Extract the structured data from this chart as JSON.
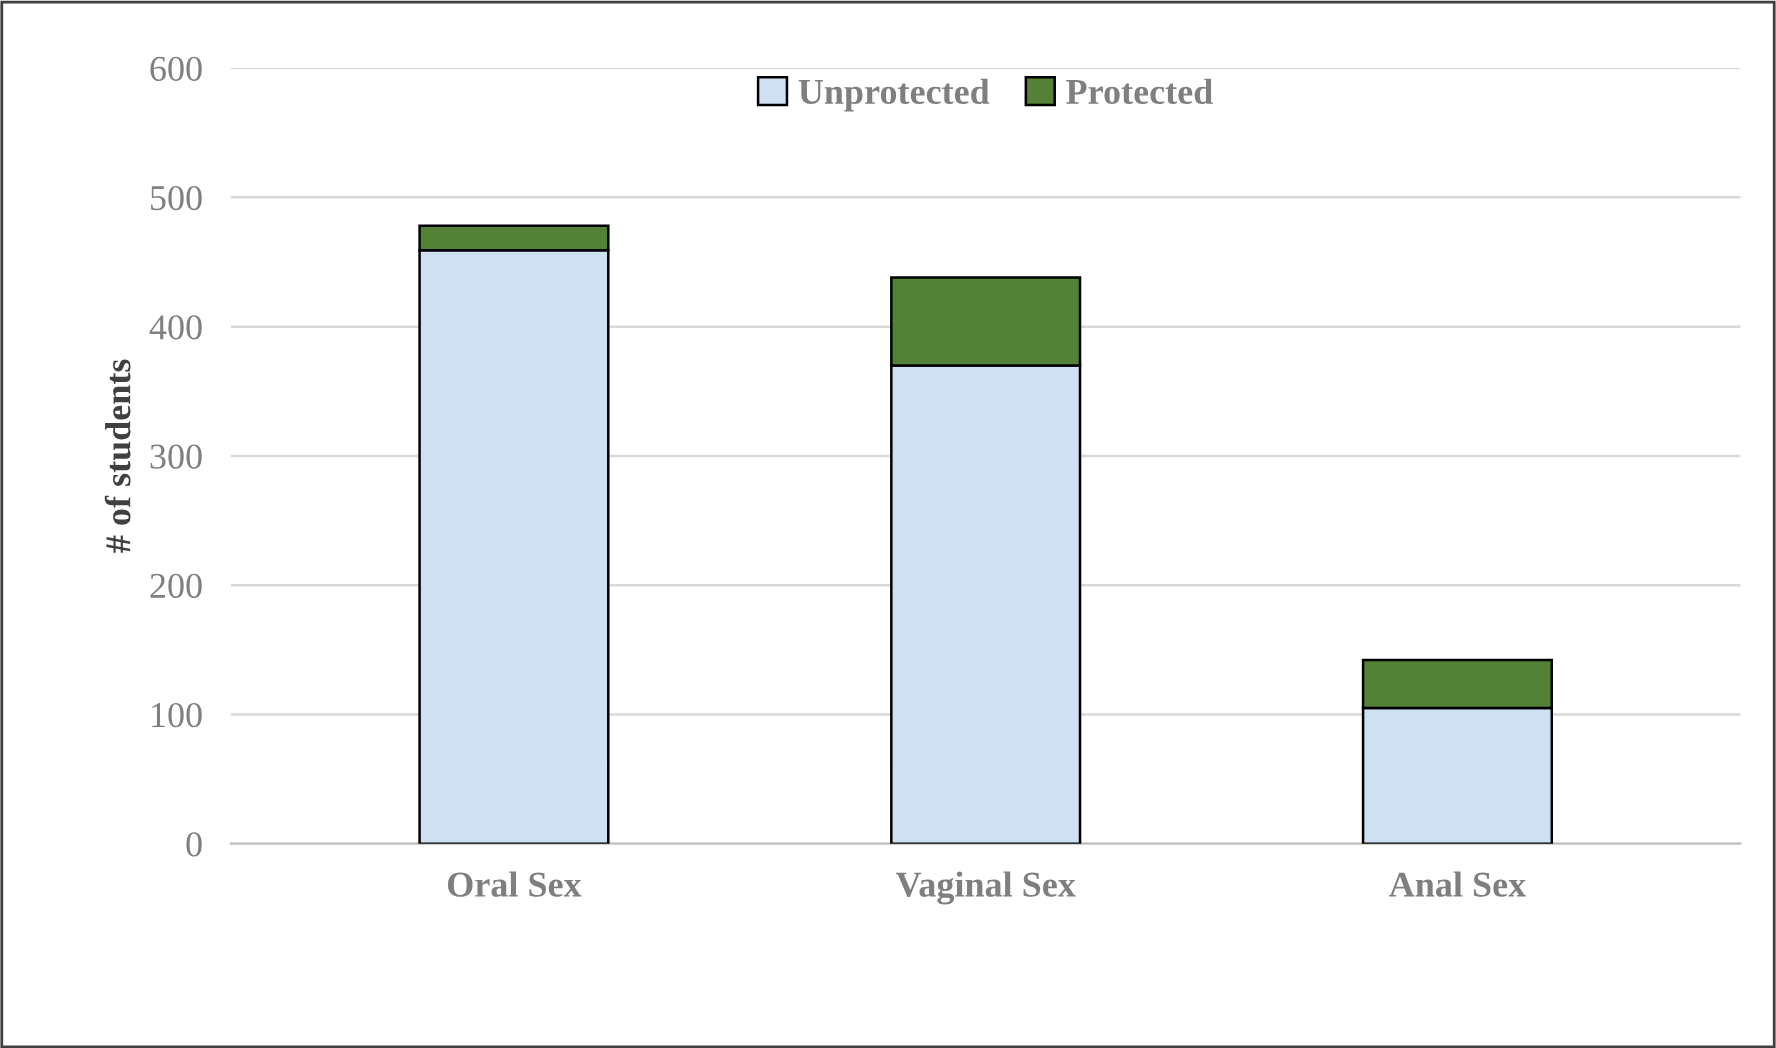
{
  "chart_data": {
    "type": "bar",
    "stacked": true,
    "ylabel": "# of students",
    "categories": [
      "Oral Sex",
      "Vaginal Sex",
      "Anal Sex"
    ],
    "series": [
      {
        "name": "Unprotected",
        "color": "#cfe0f3",
        "values": [
          459,
          370,
          105
        ]
      },
      {
        "name": "Protected",
        "color": "#538135",
        "values": [
          19,
          68,
          37
        ]
      }
    ],
    "ylim": [
      0,
      600
    ],
    "yticks": [
      0,
      100,
      200,
      300,
      400,
      500,
      600
    ],
    "grid": "y",
    "legend": "top"
  }
}
